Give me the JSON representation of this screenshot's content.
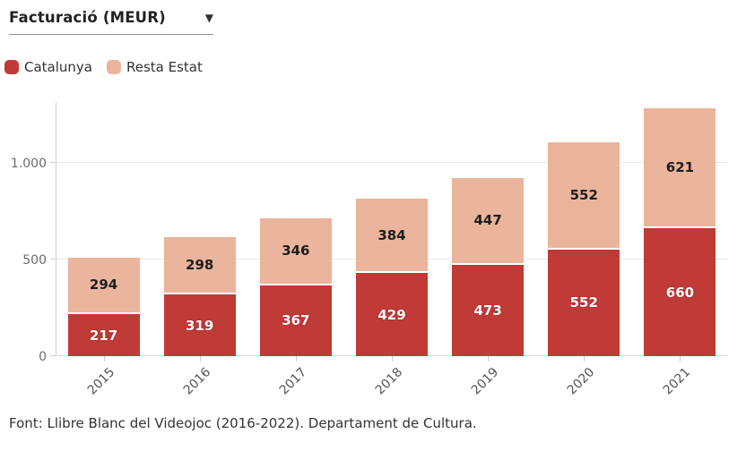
{
  "header": {
    "title": "Facturació (MEUR)",
    "dropdown_icon": "▼"
  },
  "legend": {
    "items": [
      {
        "label": "Catalunya",
        "color": "#c03a37"
      },
      {
        "label": "Resta Estat",
        "color": "#eab59c"
      }
    ]
  },
  "footer": {
    "source": "Font: Llibre Blanc del Videojoc (2016-2022). Departament de Cultura."
  },
  "chart_data": {
    "type": "bar",
    "stacked": true,
    "title": "Facturació (MEUR)",
    "categories": [
      "2015",
      "2016",
      "2017",
      "2018",
      "2019",
      "2020",
      "2021"
    ],
    "series": [
      {
        "name": "Catalunya",
        "color": "#c03a37",
        "label_style": "light",
        "values": [
          217,
          319,
          367,
          429,
          473,
          552,
          660
        ]
      },
      {
        "name": "Resta Estat",
        "color": "#eab59c",
        "label_style": "dark",
        "values": [
          294,
          298,
          346,
          384,
          447,
          552,
          621
        ]
      }
    ],
    "totals": [
      511,
      617,
      713,
      813,
      920,
      1104,
      1281
    ],
    "xlabel": "",
    "ylabel": "",
    "ylim": [
      0,
      1300
    ],
    "yticks": [
      0,
      500,
      1000
    ],
    "ytick_labels": [
      "0",
      "500",
      "1.000"
    ],
    "grid": true,
    "legend_position": "top-left"
  }
}
